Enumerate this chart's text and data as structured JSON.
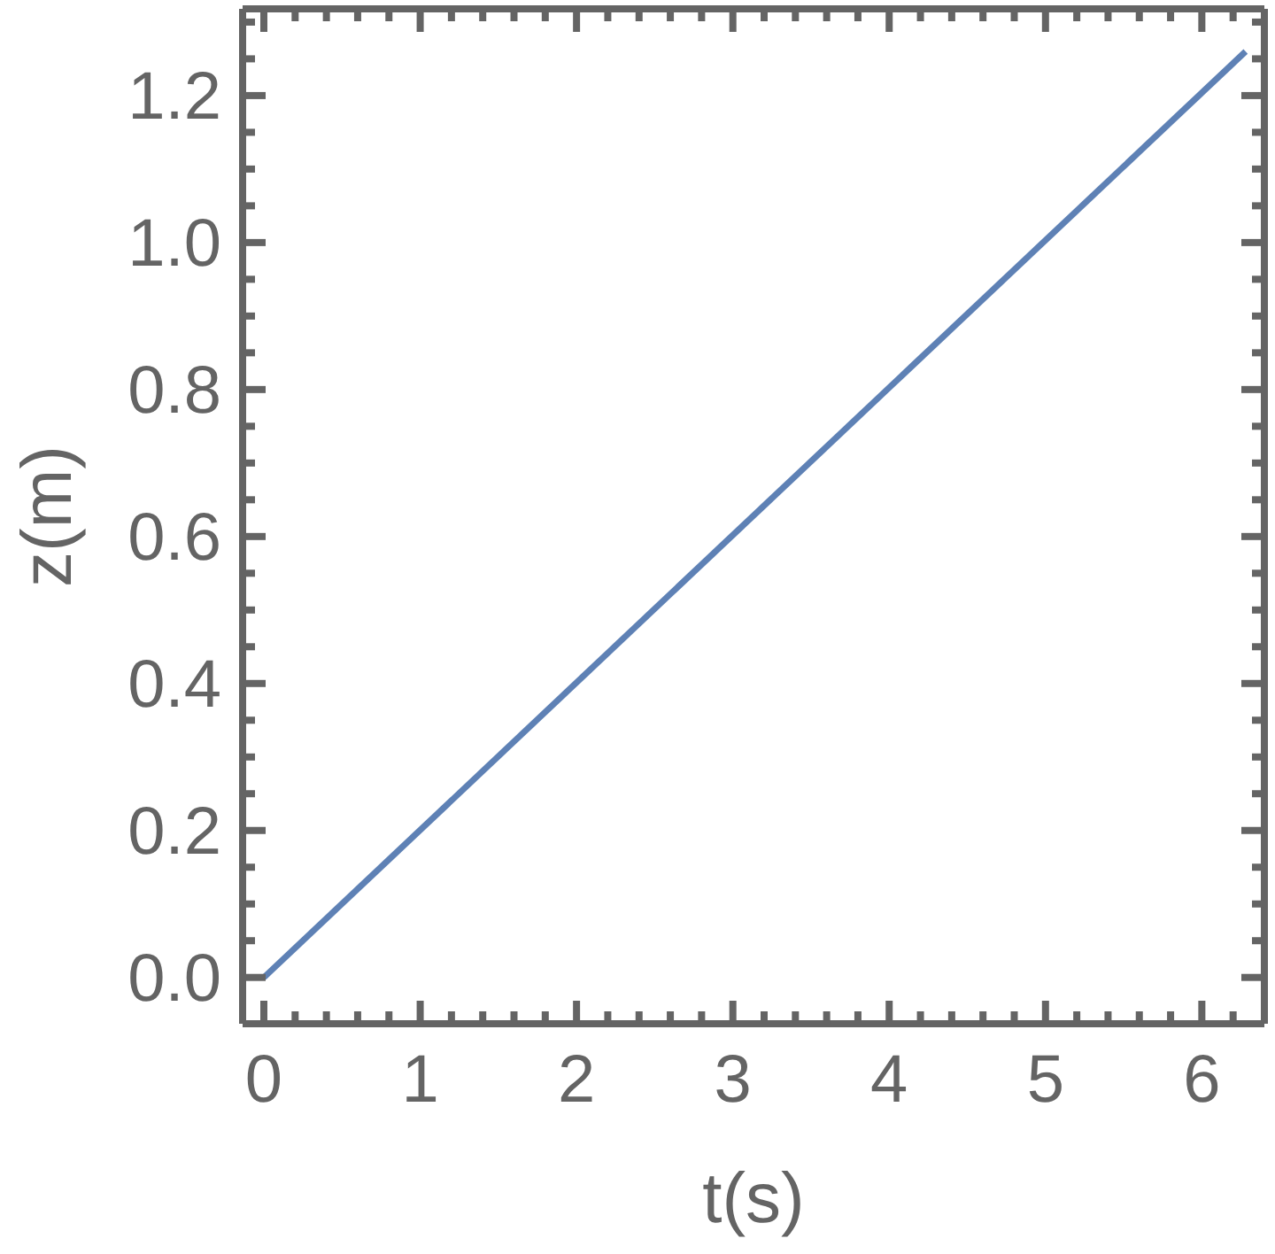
{
  "chart_data": {
    "type": "line",
    "xlabel": "t(s)",
    "ylabel": "z(m)",
    "series": [
      {
        "color": "#5e81b5",
        "x": [
          0,
          6.28
        ],
        "values": [
          0,
          1.26
        ]
      }
    ],
    "xlim": [
      -0.136,
      6.4
    ],
    "ylim": [
      -0.063,
      1.318
    ],
    "xticks": [
      0,
      {
        "value": 0.2,
        "label": null
      },
      {
        "value": 0.4,
        "label": null
      },
      {
        "value": 0.6,
        "label": null
      },
      {
        "value": 0.8,
        "label": null
      },
      1,
      {
        "value": 1.2,
        "label": null
      },
      {
        "value": 1.4,
        "label": null
      },
      {
        "value": 1.6,
        "label": null
      },
      {
        "value": 1.8,
        "label": null
      },
      2,
      {
        "value": 2.2,
        "label": null
      },
      {
        "value": 2.4,
        "label": null
      },
      {
        "value": 2.6,
        "label": null
      },
      {
        "value": 2.8,
        "label": null
      },
      3,
      {
        "value": 3.2,
        "label": null
      },
      {
        "value": 3.4,
        "label": null
      },
      {
        "value": 3.6,
        "label": null
      },
      {
        "value": 3.8,
        "label": null
      },
      4,
      {
        "value": 4.2,
        "label": null
      },
      {
        "value": 4.4,
        "label": null
      },
      {
        "value": 4.6,
        "label": null
      },
      {
        "value": 4.8,
        "label": null
      },
      5,
      {
        "value": 5.2,
        "label": null
      },
      {
        "value": 5.4,
        "label": null
      },
      {
        "value": 5.6,
        "label": null
      },
      {
        "value": 5.8,
        "label": null
      },
      6,
      {
        "value": 6.2,
        "label": null
      }
    ],
    "yticks": [
      {
        "value": 0,
        "label": "0.0"
      },
      {
        "value": 0.05,
        "label": null
      },
      {
        "value": 0.1,
        "label": null
      },
      {
        "value": 0.15,
        "label": null
      },
      {
        "value": 0.2,
        "label": "0.2"
      },
      {
        "value": 0.25,
        "label": null
      },
      {
        "value": 0.3,
        "label": null
      },
      {
        "value": 0.35,
        "label": null
      },
      {
        "value": 0.4,
        "label": "0.4"
      },
      {
        "value": 0.45,
        "label": null
      },
      {
        "value": 0.5,
        "label": null
      },
      {
        "value": 0.55,
        "label": null
      },
      {
        "value": 0.6,
        "label": "0.6"
      },
      {
        "value": 0.65,
        "label": null
      },
      {
        "value": 0.7,
        "label": null
      },
      {
        "value": 0.75,
        "label": null
      },
      {
        "value": 0.8,
        "label": "0.8"
      },
      {
        "value": 0.85,
        "label": null
      },
      {
        "value": 0.9,
        "label": null
      },
      {
        "value": 0.95,
        "label": null
      },
      {
        "value": 1,
        "label": "1.0"
      },
      {
        "value": 1.05,
        "label": null
      },
      {
        "value": 1.1,
        "label": null
      },
      {
        "value": 1.15,
        "label": null
      },
      {
        "value": 1.2,
        "label": "1.2"
      },
      {
        "value": 1.25,
        "label": null
      },
      {
        "value": 1.3,
        "label": null
      }
    ],
    "grid": false,
    "legend": false,
    "marker": "none",
    "line_style": "solid"
  }
}
